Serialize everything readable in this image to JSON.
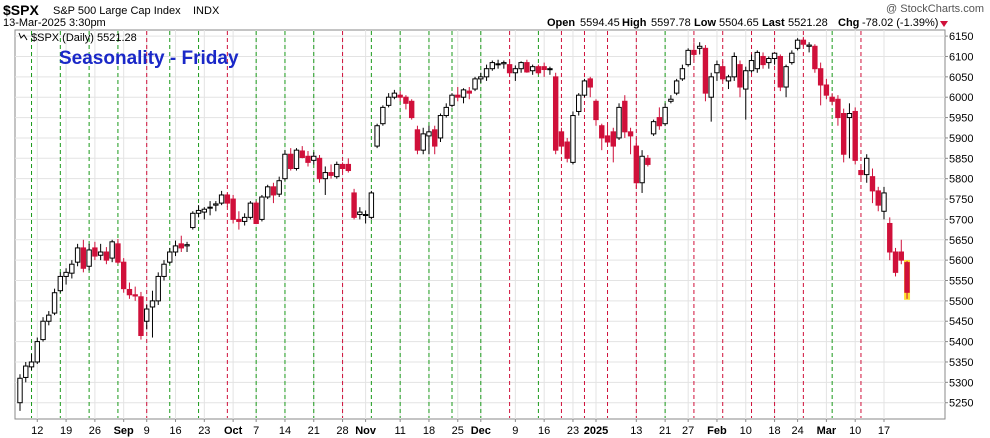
{
  "header": {
    "symbol": "$SPX",
    "description": "S&P 500 Large Cap Index",
    "exchange": "INDX",
    "timestamp": "13-Mar-2025 3:30pm",
    "watermark": "@ StockCharts.com",
    "open_label": "Open",
    "open_value": "5594.45",
    "high_label": "High",
    "high_value": "5597.78",
    "low_label": "Low",
    "low_value": "5504.65",
    "last_label": "Last",
    "last_value": "5521.28",
    "chg_label": "Chg",
    "chg_value": "-78.02 (-1.39%)",
    "legend_text": "$SPX (Daily) 5521.28"
  },
  "colors": {
    "up_candle": "#000000",
    "down_candle": "#d0103a",
    "friday_up_line": "#1a9a1a",
    "friday_down_line": "#d0103a",
    "title": "#1a28c8",
    "grid": "#e3e3e3",
    "last_bar_highlight": "#ffe033"
  },
  "chart_data": {
    "type": "candlestick",
    "title": "Seasonality - Friday",
    "ylim": [
      5210,
      6165
    ],
    "y_ticks": [
      5250,
      5300,
      5350,
      5400,
      5450,
      5500,
      5550,
      5600,
      5650,
      5700,
      5750,
      5800,
      5850,
      5900,
      5950,
      6000,
      6050,
      6100,
      6150
    ],
    "x_labels": [
      {
        "label": "12",
        "bar": 3,
        "bold": false
      },
      {
        "label": "19",
        "bar": 8,
        "bold": false
      },
      {
        "label": "26",
        "bar": 13,
        "bold": false
      },
      {
        "label": "Sep",
        "bar": 18,
        "bold": true
      },
      {
        "label": "9",
        "bar": 22,
        "bold": false
      },
      {
        "label": "16",
        "bar": 27,
        "bold": false
      },
      {
        "label": "23",
        "bar": 32,
        "bold": false
      },
      {
        "label": "Oct",
        "bar": 37,
        "bold": true
      },
      {
        "label": "7",
        "bar": 41,
        "bold": false
      },
      {
        "label": "14",
        "bar": 46,
        "bold": false
      },
      {
        "label": "21",
        "bar": 51,
        "bold": false
      },
      {
        "label": "28",
        "bar": 56,
        "bold": false
      },
      {
        "label": "Nov",
        "bar": 60,
        "bold": true
      },
      {
        "label": "11",
        "bar": 66,
        "bold": false
      },
      {
        "label": "18",
        "bar": 71,
        "bold": false
      },
      {
        "label": "25",
        "bar": 76,
        "bold": false
      },
      {
        "label": "Dec",
        "bar": 80,
        "bold": true
      },
      {
        "label": "9",
        "bar": 86,
        "bold": false
      },
      {
        "label": "16",
        "bar": 91,
        "bold": false
      },
      {
        "label": "23",
        "bar": 96,
        "bold": false
      },
      {
        "label": "2025",
        "bar": 100,
        "bold": true
      },
      {
        "label": "13",
        "bar": 107,
        "bold": false
      },
      {
        "label": "21",
        "bar": 112,
        "bold": false
      },
      {
        "label": "27",
        "bar": 116,
        "bold": false
      },
      {
        "label": "Feb",
        "bar": 121,
        "bold": true
      },
      {
        "label": "10",
        "bar": 126,
        "bold": false
      },
      {
        "label": "18",
        "bar": 131,
        "bold": false
      },
      {
        "label": "24",
        "bar": 135,
        "bold": false
      },
      {
        "label": "Mar",
        "bar": 140,
        "bold": true
      },
      {
        "label": "10",
        "bar": 145,
        "bold": false
      },
      {
        "label": "17",
        "bar": 150,
        "bold": false
      }
    ],
    "friday_lines": [
      {
        "bar": 2,
        "up": true
      },
      {
        "bar": 7,
        "up": true
      },
      {
        "bar": 12,
        "up": true
      },
      {
        "bar": 17,
        "up": true
      },
      {
        "bar": 22,
        "up": false
      },
      {
        "bar": 26,
        "up": true
      },
      {
        "bar": 31,
        "up": true
      },
      {
        "bar": 36,
        "up": false
      },
      {
        "bar": 41,
        "up": true
      },
      {
        "bar": 46,
        "up": true
      },
      {
        "bar": 51,
        "up": true
      },
      {
        "bar": 56,
        "up": false
      },
      {
        "bar": 61,
        "up": true
      },
      {
        "bar": 66,
        "up": true
      },
      {
        "bar": 71,
        "up": true
      },
      {
        "bar": 75,
        "up": true
      },
      {
        "bar": 80,
        "up": true
      },
      {
        "bar": 85,
        "up": false
      },
      {
        "bar": 90,
        "up": true
      },
      {
        "bar": 94,
        "up": false
      },
      {
        "bar": 98,
        "up": false
      },
      {
        "bar": 102,
        "up": false
      },
      {
        "bar": 107,
        "up": false
      },
      {
        "bar": 112,
        "up": true
      },
      {
        "bar": 117,
        "up": false
      },
      {
        "bar": 122,
        "up": false
      },
      {
        "bar": 127,
        "up": false
      },
      {
        "bar": 131,
        "up": false
      },
      {
        "bar": 136,
        "up": false
      },
      {
        "bar": 141,
        "up": true
      },
      {
        "bar": 146,
        "up": false
      }
    ],
    "candles": [
      {
        "o": 5250,
        "h": 5320,
        "l": 5230,
        "c": 5310
      },
      {
        "o": 5312,
        "h": 5350,
        "l": 5300,
        "c": 5340
      },
      {
        "o": 5338,
        "h": 5370,
        "l": 5330,
        "c": 5350
      },
      {
        "o": 5350,
        "h": 5410,
        "l": 5345,
        "c": 5400
      },
      {
        "o": 5405,
        "h": 5460,
        "l": 5400,
        "c": 5450
      },
      {
        "o": 5450,
        "h": 5475,
        "l": 5440,
        "c": 5465
      },
      {
        "o": 5470,
        "h": 5530,
        "l": 5465,
        "c": 5520
      },
      {
        "o": 5525,
        "h": 5570,
        "l": 5520,
        "c": 5560
      },
      {
        "o": 5560,
        "h": 5580,
        "l": 5540,
        "c": 5570
      },
      {
        "o": 5568,
        "h": 5600,
        "l": 5555,
        "c": 5590
      },
      {
        "o": 5595,
        "h": 5640,
        "l": 5585,
        "c": 5630
      },
      {
        "o": 5630,
        "h": 5650,
        "l": 5570,
        "c": 5580
      },
      {
        "o": 5585,
        "h": 5640,
        "l": 5575,
        "c": 5625
      },
      {
        "o": 5630,
        "h": 5645,
        "l": 5600,
        "c": 5610
      },
      {
        "o": 5612,
        "h": 5640,
        "l": 5600,
        "c": 5620
      },
      {
        "o": 5620,
        "h": 5632,
        "l": 5590,
        "c": 5600
      },
      {
        "o": 5605,
        "h": 5650,
        "l": 5595,
        "c": 5645
      },
      {
        "o": 5640,
        "h": 5652,
        "l": 5590,
        "c": 5595
      },
      {
        "o": 5595,
        "h": 5605,
        "l": 5520,
        "c": 5530
      },
      {
        "o": 5528,
        "h": 5545,
        "l": 5505,
        "c": 5515
      },
      {
        "o": 5515,
        "h": 5535,
        "l": 5500,
        "c": 5512
      },
      {
        "o": 5510,
        "h": 5522,
        "l": 5405,
        "c": 5415
      },
      {
        "o": 5450,
        "h": 5490,
        "l": 5430,
        "c": 5480
      },
      {
        "o": 5485,
        "h": 5525,
        "l": 5410,
        "c": 5500
      },
      {
        "o": 5500,
        "h": 5570,
        "l": 5490,
        "c": 5560
      },
      {
        "o": 5560,
        "h": 5600,
        "l": 5550,
        "c": 5590
      },
      {
        "o": 5595,
        "h": 5630,
        "l": 5590,
        "c": 5620
      },
      {
        "o": 5620,
        "h": 5648,
        "l": 5610,
        "c": 5635
      },
      {
        "o": 5640,
        "h": 5660,
        "l": 5620,
        "c": 5630
      },
      {
        "o": 5635,
        "h": 5645,
        "l": 5620,
        "c": 5638
      },
      {
        "o": 5680,
        "h": 5720,
        "l": 5675,
        "c": 5715
      },
      {
        "o": 5715,
        "h": 5735,
        "l": 5705,
        "c": 5722
      },
      {
        "o": 5718,
        "h": 5730,
        "l": 5700,
        "c": 5725
      },
      {
        "o": 5728,
        "h": 5745,
        "l": 5710,
        "c": 5730
      },
      {
        "o": 5735,
        "h": 5745,
        "l": 5720,
        "c": 5738
      },
      {
        "o": 5740,
        "h": 5770,
        "l": 5735,
        "c": 5760
      },
      {
        "o": 5760,
        "h": 5765,
        "l": 5730,
        "c": 5740
      },
      {
        "o": 5750,
        "h": 5760,
        "l": 5690,
        "c": 5700
      },
      {
        "o": 5700,
        "h": 5720,
        "l": 5675,
        "c": 5695
      },
      {
        "o": 5695,
        "h": 5715,
        "l": 5685,
        "c": 5705
      },
      {
        "o": 5705,
        "h": 5745,
        "l": 5700,
        "c": 5740
      },
      {
        "o": 5740,
        "h": 5745,
        "l": 5690,
        "c": 5690
      },
      {
        "o": 5700,
        "h": 5760,
        "l": 5695,
        "c": 5755
      },
      {
        "o": 5755,
        "h": 5785,
        "l": 5750,
        "c": 5780
      },
      {
        "o": 5780,
        "h": 5790,
        "l": 5740,
        "c": 5760
      },
      {
        "o": 5762,
        "h": 5805,
        "l": 5755,
        "c": 5795
      },
      {
        "o": 5800,
        "h": 5870,
        "l": 5795,
        "c": 5860
      },
      {
        "o": 5860,
        "h": 5875,
        "l": 5820,
        "c": 5825
      },
      {
        "o": 5825,
        "h": 5875,
        "l": 5820,
        "c": 5870
      },
      {
        "o": 5868,
        "h": 5880,
        "l": 5850,
        "c": 5852
      },
      {
        "o": 5855,
        "h": 5868,
        "l": 5830,
        "c": 5840
      },
      {
        "o": 5845,
        "h": 5865,
        "l": 5835,
        "c": 5855
      },
      {
        "o": 5850,
        "h": 5858,
        "l": 5790,
        "c": 5800
      },
      {
        "o": 5800,
        "h": 5830,
        "l": 5760,
        "c": 5815
      },
      {
        "o": 5815,
        "h": 5835,
        "l": 5800,
        "c": 5808
      },
      {
        "o": 5805,
        "h": 5842,
        "l": 5800,
        "c": 5835
      },
      {
        "o": 5835,
        "h": 5840,
        "l": 5815,
        "c": 5825
      },
      {
        "o": 5835,
        "h": 5850,
        "l": 5815,
        "c": 5820
      },
      {
        "o": 5765,
        "h": 5775,
        "l": 5700,
        "c": 5705
      },
      {
        "o": 5712,
        "h": 5730,
        "l": 5700,
        "c": 5718
      },
      {
        "o": 5710,
        "h": 5722,
        "l": 5690,
        "c": 5712
      },
      {
        "o": 5705,
        "h": 5770,
        "l": 5700,
        "c": 5765
      },
      {
        "o": 5880,
        "h": 5935,
        "l": 5875,
        "c": 5930
      },
      {
        "o": 5935,
        "h": 5980,
        "l": 5930,
        "c": 5975
      },
      {
        "o": 5980,
        "h": 6010,
        "l": 5975,
        "c": 6000
      },
      {
        "o": 6000,
        "h": 6018,
        "l": 5995,
        "c": 6010
      },
      {
        "o": 6005,
        "h": 6015,
        "l": 5990,
        "c": 6000
      },
      {
        "o": 6000,
        "h": 6005,
        "l": 5970,
        "c": 5985
      },
      {
        "o": 5990,
        "h": 5995,
        "l": 5945,
        "c": 5950
      },
      {
        "o": 5920,
        "h": 5930,
        "l": 5860,
        "c": 5870
      },
      {
        "o": 5870,
        "h": 5925,
        "l": 5860,
        "c": 5910
      },
      {
        "o": 5905,
        "h": 5930,
        "l": 5860,
        "c": 5915
      },
      {
        "o": 5920,
        "h": 5930,
        "l": 5860,
        "c": 5880
      },
      {
        "o": 5900,
        "h": 5960,
        "l": 5890,
        "c": 5955
      },
      {
        "o": 5955,
        "h": 5985,
        "l": 5950,
        "c": 5975
      },
      {
        "o": 5980,
        "h": 6010,
        "l": 5975,
        "c": 6005
      },
      {
        "o": 6005,
        "h": 6025,
        "l": 5990,
        "c": 6000
      },
      {
        "o": 6000,
        "h": 6022,
        "l": 5985,
        "c": 6018
      },
      {
        "o": 6015,
        "h": 6025,
        "l": 5995,
        "c": 6010
      },
      {
        "o": 6020,
        "h": 6050,
        "l": 6015,
        "c": 6045
      },
      {
        "o": 6045,
        "h": 6060,
        "l": 6035,
        "c": 6050
      },
      {
        "o": 6050,
        "h": 6080,
        "l": 6040,
        "c": 6070
      },
      {
        "o": 6070,
        "h": 6090,
        "l": 6065,
        "c": 6085
      },
      {
        "o": 6080,
        "h": 6092,
        "l": 6070,
        "c": 6082
      },
      {
        "o": 6082,
        "h": 6090,
        "l": 6070,
        "c": 6085
      },
      {
        "o": 6080,
        "h": 6090,
        "l": 6050,
        "c": 6060
      },
      {
        "o": 6060,
        "h": 6078,
        "l": 6040,
        "c": 6070
      },
      {
        "o": 6070,
        "h": 6088,
        "l": 6060,
        "c": 6085
      },
      {
        "o": 6085,
        "h": 6092,
        "l": 6060,
        "c": 6062
      },
      {
        "o": 6065,
        "h": 6080,
        "l": 6055,
        "c": 6075
      },
      {
        "o": 6075,
        "h": 6080,
        "l": 6055,
        "c": 6060
      },
      {
        "o": 6075,
        "h": 6085,
        "l": 6050,
        "c": 6068
      },
      {
        "o": 6068,
        "h": 6075,
        "l": 6055,
        "c": 6070
      },
      {
        "o": 6050,
        "h": 6060,
        "l": 5860,
        "c": 5870
      },
      {
        "o": 5915,
        "h": 5925,
        "l": 5860,
        "c": 5880
      },
      {
        "o": 5890,
        "h": 5900,
        "l": 5840,
        "c": 5850
      },
      {
        "o": 5840,
        "h": 5965,
        "l": 5835,
        "c": 5955
      },
      {
        "o": 5965,
        "h": 6010,
        "l": 5955,
        "c": 6005
      },
      {
        "o": 6005,
        "h": 6045,
        "l": 6000,
        "c": 6040
      },
      {
        "o": 6045,
        "h": 6050,
        "l": 6000,
        "c": 6025
      },
      {
        "o": 5990,
        "h": 5995,
        "l": 5930,
        "c": 5945
      },
      {
        "o": 5930,
        "h": 5935,
        "l": 5870,
        "c": 5900
      },
      {
        "o": 5905,
        "h": 5930,
        "l": 5880,
        "c": 5890
      },
      {
        "o": 5915,
        "h": 5925,
        "l": 5840,
        "c": 5880
      },
      {
        "o": 5900,
        "h": 5985,
        "l": 5895,
        "c": 5975
      },
      {
        "o": 5990,
        "h": 6005,
        "l": 5900,
        "c": 5915
      },
      {
        "o": 5915,
        "h": 5925,
        "l": 5860,
        "c": 5905
      },
      {
        "o": 5880,
        "h": 5900,
        "l": 5775,
        "c": 5790
      },
      {
        "o": 5790,
        "h": 5870,
        "l": 5765,
        "c": 5855
      },
      {
        "o": 5850,
        "h": 5858,
        "l": 5830,
        "c": 5835
      },
      {
        "o": 5910,
        "h": 5945,
        "l": 5905,
        "c": 5940
      },
      {
        "o": 5950,
        "h": 5975,
        "l": 5920,
        "c": 5930
      },
      {
        "o": 5935,
        "h": 5985,
        "l": 5930,
        "c": 5975
      },
      {
        "o": 5990,
        "h": 6005,
        "l": 5985,
        "c": 5995
      },
      {
        "o": 6010,
        "h": 6045,
        "l": 6005,
        "c": 6040
      },
      {
        "o": 6045,
        "h": 6080,
        "l": 6040,
        "c": 6070
      },
      {
        "o": 6080,
        "h": 6120,
        "l": 6075,
        "c": 6115
      },
      {
        "o": 6115,
        "h": 6135,
        "l": 6090,
        "c": 6105
      },
      {
        "o": 6120,
        "h": 6135,
        "l": 6105,
        "c": 6125
      },
      {
        "o": 6120,
        "h": 6128,
        "l": 5990,
        "c": 6010
      },
      {
        "o": 6000,
        "h": 6060,
        "l": 5940,
        "c": 6050
      },
      {
        "o": 6060,
        "h": 6090,
        "l": 6040,
        "c": 6080
      },
      {
        "o": 6075,
        "h": 6088,
        "l": 6040,
        "c": 6045
      },
      {
        "o": 6040,
        "h": 6055,
        "l": 6020,
        "c": 6050
      },
      {
        "o": 6050,
        "h": 6110,
        "l": 6040,
        "c": 6100
      },
      {
        "o": 6080,
        "h": 6090,
        "l": 6000,
        "c": 6025
      },
      {
        "o": 6020,
        "h": 6075,
        "l": 5945,
        "c": 6065
      },
      {
        "o": 6065,
        "h": 6105,
        "l": 6060,
        "c": 6090
      },
      {
        "o": 6070,
        "h": 6115,
        "l": 6060,
        "c": 6110
      },
      {
        "o": 6100,
        "h": 6110,
        "l": 6070,
        "c": 6080
      },
      {
        "o": 6085,
        "h": 6100,
        "l": 6070,
        "c": 6095
      },
      {
        "o": 6095,
        "h": 6110,
        "l": 6080,
        "c": 6108
      },
      {
        "o": 6100,
        "h": 6105,
        "l": 6015,
        "c": 6025
      },
      {
        "o": 6025,
        "h": 6080,
        "l": 6000,
        "c": 6075
      },
      {
        "o": 6085,
        "h": 6115,
        "l": 6080,
        "c": 6108
      },
      {
        "o": 6120,
        "h": 6145,
        "l": 6115,
        "c": 6140
      },
      {
        "o": 6140,
        "h": 6148,
        "l": 6125,
        "c": 6130
      },
      {
        "o": 6125,
        "h": 6135,
        "l": 6110,
        "c": 6128
      },
      {
        "o": 6125,
        "h": 6130,
        "l": 6060,
        "c": 6070
      },
      {
        "o": 6070,
        "h": 6085,
        "l": 5980,
        "c": 6030
      },
      {
        "o": 6030,
        "h": 6045,
        "l": 5995,
        "c": 6005
      },
      {
        "o": 6000,
        "h": 6010,
        "l": 5980,
        "c": 5990
      },
      {
        "o": 5995,
        "h": 6005,
        "l": 5930,
        "c": 5950
      },
      {
        "o": 5960,
        "h": 5972,
        "l": 5840,
        "c": 5860
      },
      {
        "o": 5950,
        "h": 5985,
        "l": 5850,
        "c": 5960
      },
      {
        "o": 5965,
        "h": 5975,
        "l": 5835,
        "c": 5845
      },
      {
        "o": 5820,
        "h": 5830,
        "l": 5800,
        "c": 5810
      },
      {
        "o": 5810,
        "h": 5860,
        "l": 5790,
        "c": 5850
      },
      {
        "o": 5805,
        "h": 5825,
        "l": 5740,
        "c": 5770
      },
      {
        "o": 5770,
        "h": 5780,
        "l": 5720,
        "c": 5735
      },
      {
        "o": 5720,
        "h": 5780,
        "l": 5700,
        "c": 5765
      },
      {
        "o": 5690,
        "h": 5705,
        "l": 5600,
        "c": 5620
      },
      {
        "o": 5620,
        "h": 5630,
        "l": 5560,
        "c": 5570
      },
      {
        "o": 5620,
        "h": 5650,
        "l": 5590,
        "c": 5600
      },
      {
        "o": 5594,
        "h": 5598,
        "l": 5505,
        "c": 5521
      }
    ]
  }
}
